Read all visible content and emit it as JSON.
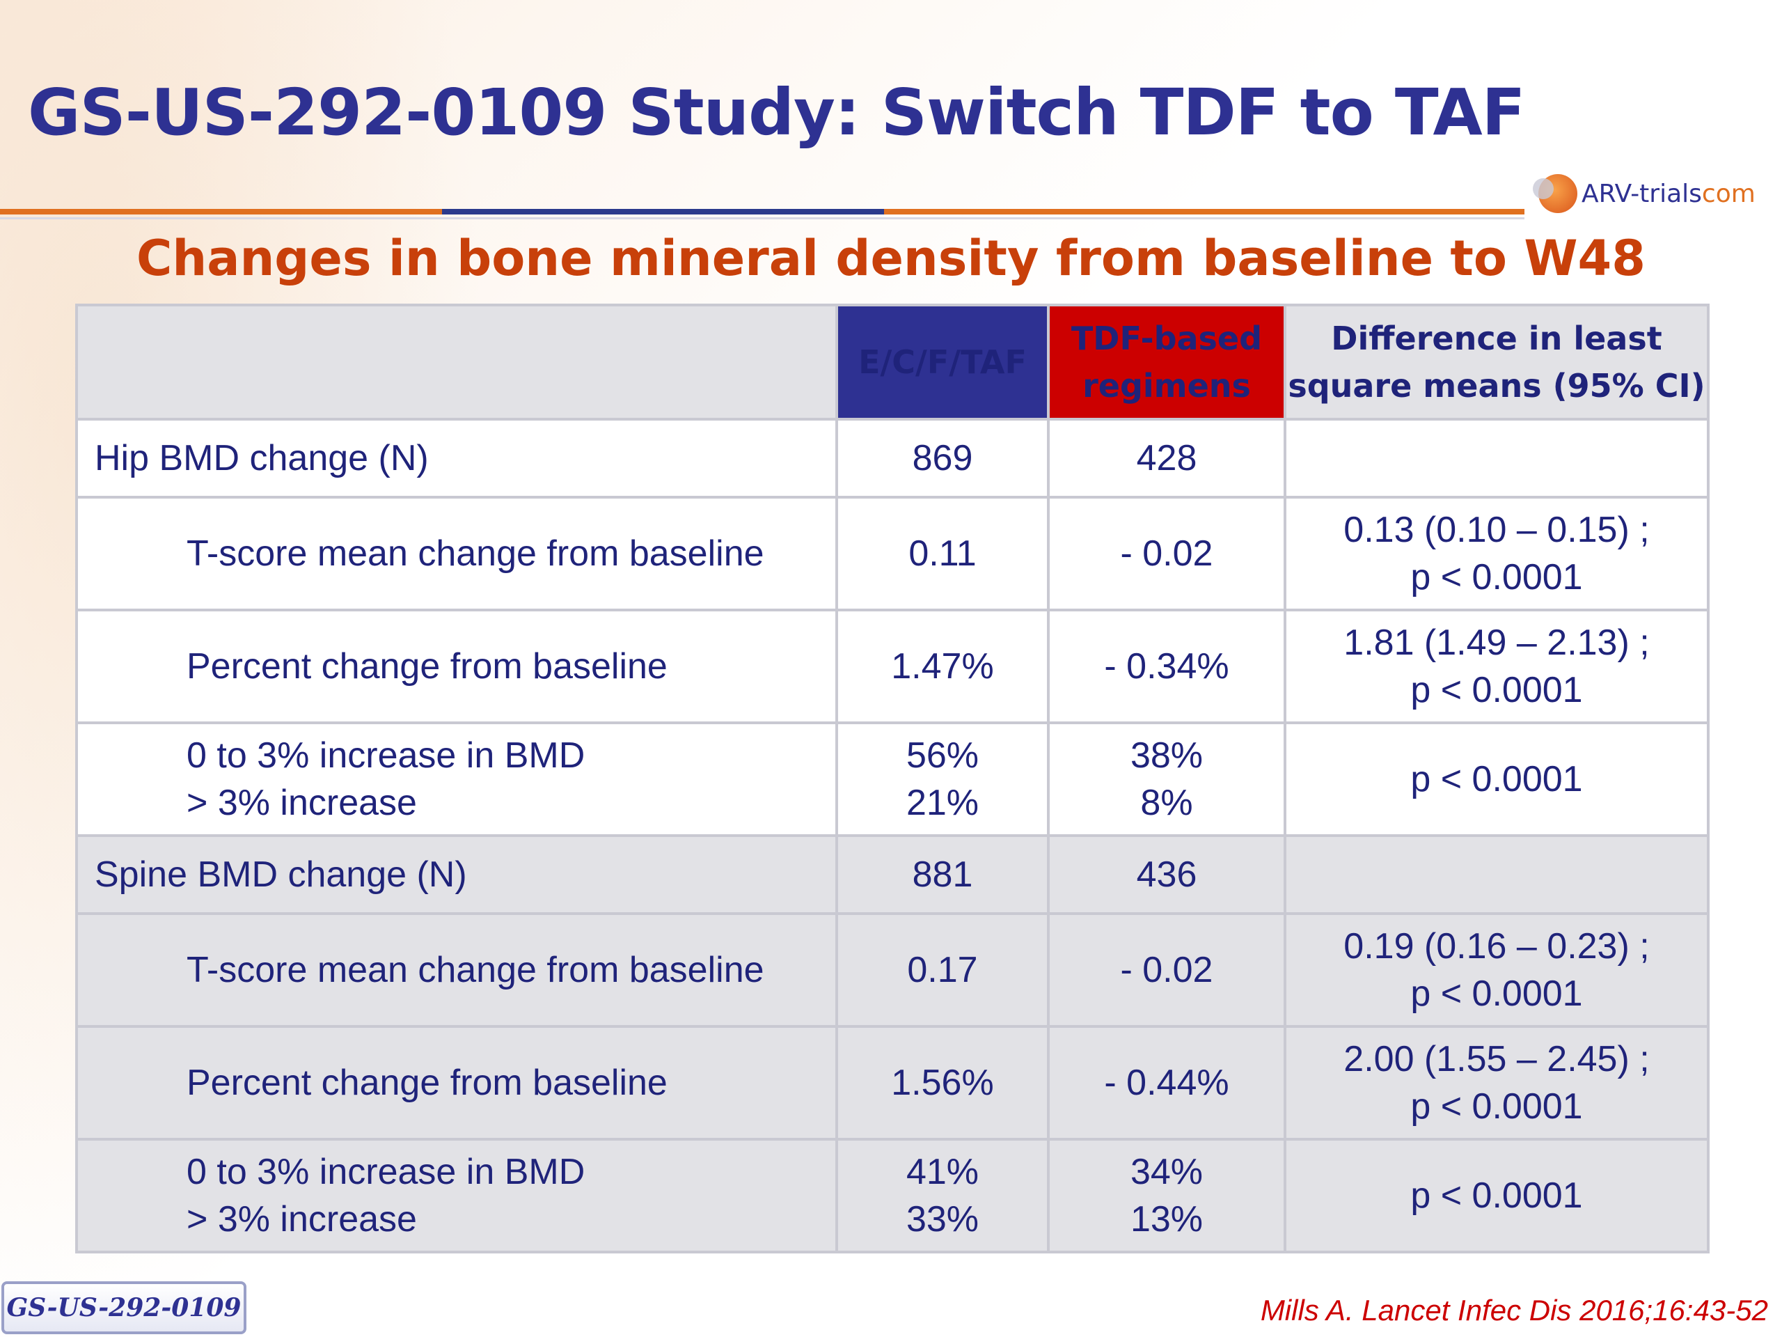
{
  "title": "GS-US-292-0109 Study: Switch TDF to TAF",
  "logo": {
    "text_main": "ARV-trials",
    "text_com": "com"
  },
  "subtitle": "Changes in bone mineral density from baseline to W48",
  "colors": {
    "title": "#2e3192",
    "subtitle": "#c8400a",
    "ecf_header": "#2e3192",
    "tdf_header": "#cc0000",
    "citation": "#cc0000"
  },
  "table": {
    "headers": {
      "label": "",
      "ecf": "E/C/F/TAF",
      "tdf": [
        "TDF-based",
        "regimens"
      ],
      "diff": [
        "Difference in least",
        "square means (95% CI)"
      ]
    },
    "hip": {
      "title": {
        "label": "Hip BMD change (N)",
        "ecf": "869",
        "tdf": "428",
        "diff": ""
      },
      "tscore": {
        "label": "T-score mean change from baseline",
        "ecf": "0.11",
        "tdf": "- 0.02",
        "diff": [
          "0.13 (0.10 – 0.15) ;",
          "p < 0.0001"
        ]
      },
      "percent": {
        "label": "Percent change from baseline",
        "ecf": "1.47%",
        "tdf": "- 0.34%",
        "diff": [
          "1.81 (1.49 – 2.13) ;",
          "p < 0.0001"
        ]
      },
      "increase": {
        "label": [
          "0 to 3% increase in BMD",
          "> 3% increase"
        ],
        "ecf": [
          "56%",
          "21%"
        ],
        "tdf": [
          "38%",
          "8%"
        ],
        "diff": "p < 0.0001"
      }
    },
    "spine": {
      "title": {
        "label": "Spine BMD change (N)",
        "ecf": "881",
        "tdf": "436",
        "diff": ""
      },
      "tscore": {
        "label": "T-score mean change from baseline",
        "ecf": "0.17",
        "tdf": "- 0.02",
        "diff": [
          "0.19 (0.16 – 0.23) ;",
          "p < 0.0001"
        ]
      },
      "percent": {
        "label": "Percent change from baseline",
        "ecf": "1.56%",
        "tdf": "- 0.44%",
        "diff": [
          "2.00 (1.55 – 2.45) ;",
          "p < 0.0001"
        ]
      },
      "increase": {
        "label": [
          "0 to 3% increase in BMD",
          "> 3% increase"
        ],
        "ecf": [
          "41%",
          "33%"
        ],
        "tdf": [
          "34%",
          "13%"
        ],
        "diff": "p < 0.0001"
      }
    }
  },
  "footer": {
    "study_tag": "GS-US-292-0109",
    "citation": "Mills A. Lancet Infec Dis 2016;16:43-52"
  }
}
